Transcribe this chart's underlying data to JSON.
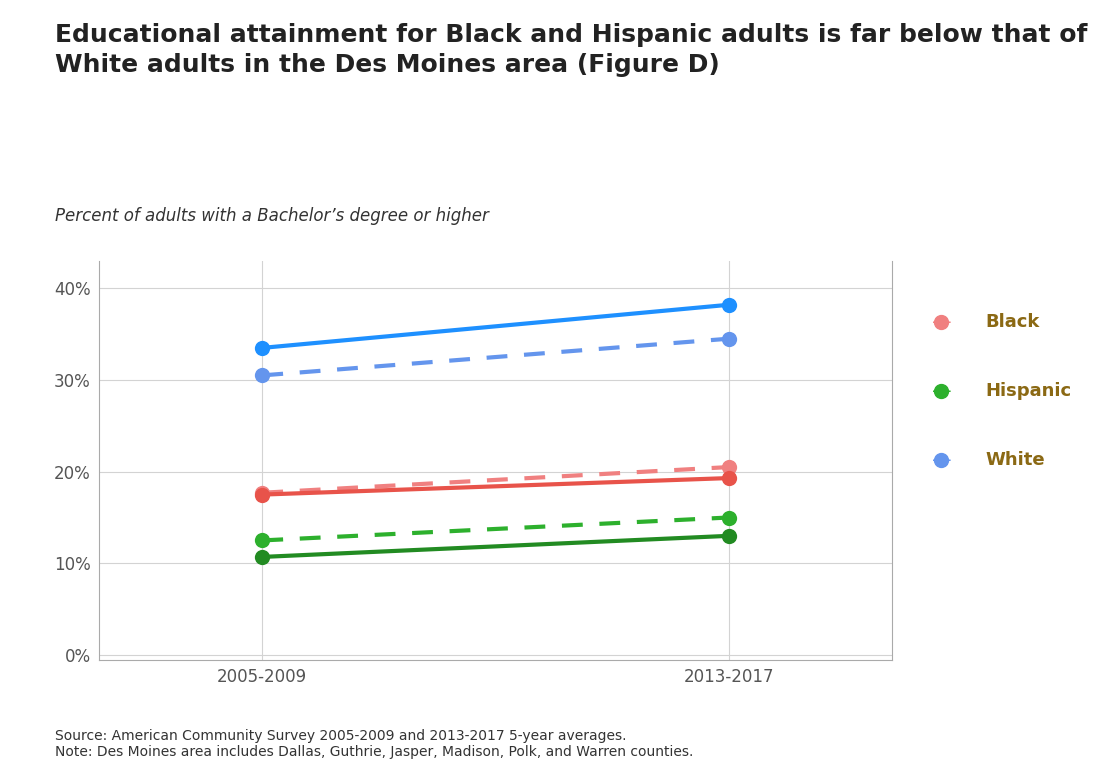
{
  "title_line1": "Educational attainment for Black and Hispanic adults is far below that of",
  "title_line2": "White adults in the Des Moines area (Figure D)",
  "subtitle": "Percent of adults with a Bachelor’s degree or higher",
  "x_labels": [
    "2005-2009",
    "2013-2017"
  ],
  "x_positions": [
    0,
    1
  ],
  "series_order": [
    "Black",
    "Hispanic",
    "White"
  ],
  "series": {
    "Black": {
      "solid": [
        17.5,
        19.3
      ],
      "dashed": [
        17.7,
        20.5
      ],
      "color": "#F08080",
      "color_solid": "#E8534A"
    },
    "Hispanic": {
      "solid": [
        10.7,
        13.0
      ],
      "dashed": [
        12.5,
        15.0
      ],
      "color": "#2DB02D",
      "color_solid": "#228B22"
    },
    "White": {
      "solid": [
        33.5,
        38.2
      ],
      "dashed": [
        30.5,
        34.5
      ],
      "color": "#6495ED",
      "color_solid": "#1E90FF"
    }
  },
  "yticks": [
    0,
    10,
    20,
    30,
    40
  ],
  "ylim": [
    -0.5,
    43
  ],
  "xlim": [
    -0.35,
    1.35
  ],
  "source_text": "Source: American Community Survey 2005-2009 and 2013-2017 5-year averages.\nNote: Des Moines area includes Dallas, Guthrie, Jasper, Madison, Polk, and Warren counties.",
  "background_color": "#FFFFFF",
  "plot_bg_color": "#FFFFFF",
  "grid_color": "#D3D3D3",
  "marker_size": 11,
  "line_width": 3.0,
  "legend_text_color": "#8B6914"
}
